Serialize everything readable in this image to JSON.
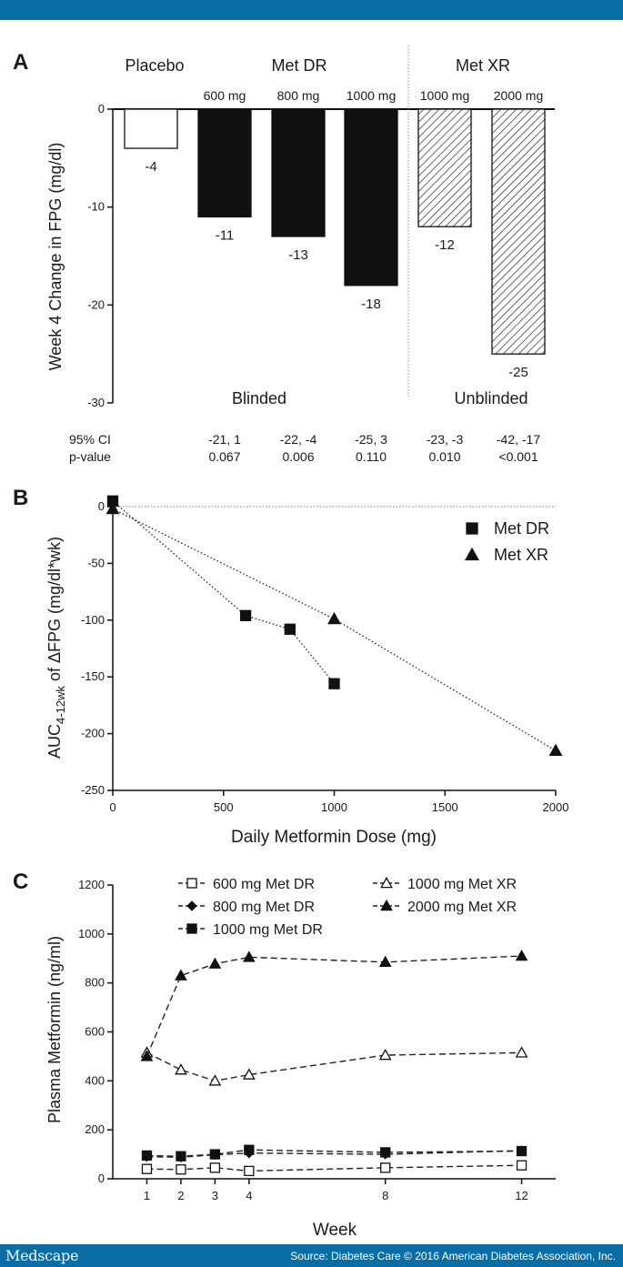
{
  "footer": {
    "brand": "Medscape",
    "source": "Source: Diabetes Care © 2016 American Diabetes Association, Inc."
  },
  "chart_data": [
    {
      "panel": "A",
      "type": "bar",
      "ylabel": "Week 4 Change in FPG (mg/dl)",
      "ylim": [
        -30,
        0
      ],
      "yticks": [
        0,
        -10,
        -20,
        -30
      ],
      "groups": [
        {
          "label": "Placebo"
        },
        {
          "label": "Met DR",
          "sublabel": "Blinded"
        },
        {
          "label": "Met XR",
          "sublabel": "Unblinded"
        }
      ],
      "categories": [
        "",
        "600 mg",
        "800 mg",
        "1000 mg",
        "1000 mg",
        "2000 mg"
      ],
      "values": [
        -4,
        -11,
        -13,
        -18,
        -12,
        -25
      ],
      "value_labels": [
        "-4",
        "-11",
        "-13",
        "-18",
        "-12",
        "-25"
      ],
      "bar_styles": [
        "open",
        "solid",
        "solid",
        "solid",
        "hatched",
        "hatched"
      ],
      "table": {
        "ci_label": "95% CI",
        "p_label": "p-value",
        "ci": [
          "",
          "-21, 1",
          "-22, -4",
          "-25, 3",
          "-23, -3",
          "-42, -17"
        ],
        "p": [
          "",
          "0.067",
          "0.006",
          "0.110",
          "0.010",
          "<0.001"
        ]
      }
    },
    {
      "panel": "B",
      "type": "scatter",
      "ylabel_main": "AUC",
      "ylabel_sub": "4-12wk",
      "ylabel_rest": " of ΔFPG (mg/dl*wk)",
      "xlabel": "Daily Metformin Dose (mg)",
      "xlim": [
        0,
        2000
      ],
      "ylim": [
        -250,
        0
      ],
      "xticks": [
        0,
        500,
        1000,
        1500,
        2000
      ],
      "yticks": [
        0,
        -50,
        -100,
        -150,
        -200,
        -250
      ],
      "series": [
        {
          "name": "Met DR",
          "marker": "square",
          "x": [
            0,
            600,
            800,
            1000
          ],
          "y": [
            5,
            -96,
            -108,
            -156
          ]
        },
        {
          "name": "Met XR",
          "marker": "triangle",
          "x": [
            0,
            1000,
            2000
          ],
          "y": [
            -2,
            -99,
            -215
          ]
        }
      ]
    },
    {
      "panel": "C",
      "type": "line",
      "ylabel": "Plasma Metformin (ng/ml)",
      "xlabel": "Week",
      "xlim": [
        0,
        13
      ],
      "ylim": [
        0,
        1200
      ],
      "xticks": [
        1,
        2,
        3,
        4,
        8,
        12
      ],
      "yticks": [
        0,
        200,
        400,
        600,
        800,
        1000,
        1200
      ],
      "series": [
        {
          "name": "600 mg Met DR",
          "marker": "open-square",
          "x": [
            1,
            2,
            3,
            4,
            8,
            12
          ],
          "y": [
            40,
            38,
            45,
            32,
            45,
            55
          ]
        },
        {
          "name": "800 mg Met DR",
          "marker": "diamond",
          "x": [
            1,
            2,
            3,
            4,
            8,
            12
          ],
          "y": [
            90,
            88,
            98,
            105,
            100,
            115
          ]
        },
        {
          "name": "1000 mg Met DR",
          "marker": "square",
          "x": [
            1,
            2,
            3,
            4,
            8,
            12
          ],
          "y": [
            95,
            92,
            100,
            118,
            108,
            113
          ]
        },
        {
          "name": "1000 mg Met XR",
          "marker": "open-triangle",
          "x": [
            1,
            2,
            3,
            4,
            8,
            12
          ],
          "y": [
            515,
            445,
            400,
            425,
            505,
            515
          ]
        },
        {
          "name": "2000 mg Met XR",
          "marker": "triangle",
          "x": [
            1,
            2,
            3,
            4,
            8,
            12
          ],
          "y": [
            500,
            830,
            878,
            905,
            885,
            910
          ]
        }
      ]
    }
  ]
}
